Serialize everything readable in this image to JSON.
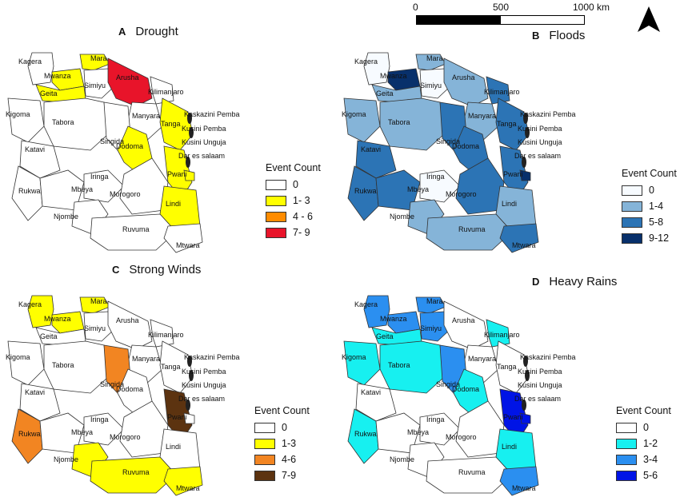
{
  "scalebar": {
    "labels": [
      "0",
      "500",
      "1000 km"
    ]
  },
  "north_arrow": {
    "icon": "north-arrow-icon"
  },
  "region_labels": [
    "Kagera",
    "Mara",
    "Arusha",
    "Kilimanjaro",
    "Mwanza",
    "Geita",
    "Simiyu",
    "Manyara",
    "Tanga",
    "Kigoma",
    "Tabora",
    "Singida",
    "Dodoma",
    "Kaskazini Pemba",
    "Kusini Pemba",
    "Kusini Unguja",
    "Dar es salaam",
    "Katavi",
    "Pwani",
    "Rukwa",
    "Mbeya",
    "Iringa",
    "Morogoro",
    "Lindi",
    "Njombe",
    "Ruvuma",
    "Mtwara"
  ],
  "panels": [
    {
      "letter": "A",
      "title": "Drought",
      "legend": {
        "title": "Event Count",
        "items": [
          {
            "label": "0",
            "color": "#ffffff"
          },
          {
            "label": "1- 3",
            "color": "#ffff00"
          },
          {
            "label": "4 - 6",
            "color": "#ff8c00"
          },
          {
            "label": "7- 9",
            "color": "#e8142a"
          }
        ]
      },
      "region_class": {
        "Mara": 1,
        "Arusha": 3,
        "Geita": 1,
        "Mwanza": 1,
        "Dodoma": 1,
        "Tanga": 1,
        "Lindi": 1,
        "Pwani": 1,
        "Dar es salaam": 1
      }
    },
    {
      "letter": "B",
      "title": "Floods",
      "legend": {
        "title": "Event Count",
        "items": [
          {
            "label": "0",
            "color": "#f7fbff"
          },
          {
            "label": "1-4",
            "color": "#85b4d8"
          },
          {
            "label": "5-8",
            "color": "#2c74b5"
          },
          {
            "label": "9-12",
            "color": "#08306b"
          }
        ]
      },
      "region_class": {
        "Kagera": 0,
        "Mara": 1,
        "Arusha": 1,
        "Kilimanjaro": 2,
        "Mwanza": 3,
        "Geita": 1,
        "Simiyu": 0,
        "Manyara": 1,
        "Tanga": 2,
        "Kigoma": 1,
        "Tabora": 1,
        "Singida": 2,
        "Dodoma": 2,
        "Katavi": 2,
        "Pwani": 2,
        "Dar es salaam": 3,
        "Rukwa": 2,
        "Mbeya": 2,
        "Iringa": 0,
        "Morogoro": 2,
        "Lindi": 1,
        "Njombe": 1,
        "Ruvuma": 1,
        "Mtwara": 2
      }
    },
    {
      "letter": "C",
      "title": "Strong Winds",
      "legend": {
        "title": "Event Count",
        "items": [
          {
            "label": "0",
            "color": "#ffffff"
          },
          {
            "label": "1-3",
            "color": "#ffff00"
          },
          {
            "label": "4-6",
            "color": "#f28522"
          },
          {
            "label": "7-9",
            "color": "#5c3310"
          }
        ]
      },
      "region_class": {
        "Kagera": 1,
        "Mara": 1,
        "Mwanza": 1,
        "Singida": 2,
        "Rukwa": 2,
        "Pwani": 3,
        "Njombe": 1,
        "Ruvuma": 1,
        "Mtwara": 1
      }
    },
    {
      "letter": "D",
      "title": "Heavy Rains",
      "legend": {
        "title": "Event Count",
        "items": [
          {
            "label": "0",
            "color": "#ffffff"
          },
          {
            "label": "1-2",
            "color": "#17f0f0"
          },
          {
            "label": "3-4",
            "color": "#2b8ff0"
          },
          {
            "label": "5-6",
            "color": "#0014e6"
          }
        ]
      },
      "region_class": {
        "Kagera": 2,
        "Mara": 2,
        "Mwanza": 2,
        "Geita": 1,
        "Simiyu": 2,
        "Kilimanjaro": 1,
        "Kigoma": 1,
        "Tabora": 1,
        "Singida": 2,
        "Dodoma": 1,
        "Katavi": 0,
        "Rukwa": 1,
        "Pwani": 3,
        "Dar es salaam": 3,
        "Lindi": 1,
        "Mtwara": 2
      }
    }
  ]
}
